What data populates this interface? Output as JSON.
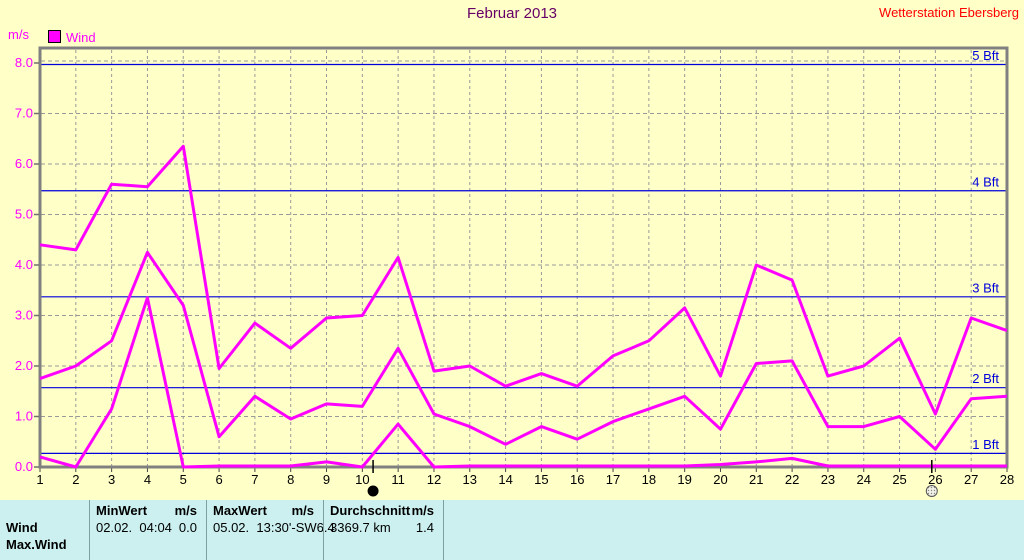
{
  "header": {
    "title": "Februar 2013",
    "station": "Wetterstation Ebersberg",
    "y_unit": "m/s"
  },
  "legend": {
    "label": "Wind",
    "swatch_color": "#FF00FF"
  },
  "chart_data": {
    "type": "line",
    "title": "Februar 2013",
    "ylabel": "m/s",
    "xlabel": "",
    "ylim": [
      0,
      8
    ],
    "ytick_step": 1.0,
    "grid": "dashed",
    "legend_position": "top-left",
    "days": [
      1,
      2,
      3,
      4,
      5,
      6,
      7,
      8,
      9,
      10,
      11,
      12,
      13,
      14,
      15,
      16,
      17,
      18,
      19,
      20,
      21,
      22,
      23,
      24,
      25,
      26,
      27,
      28
    ],
    "series": [
      {
        "name": "wind-daily-max",
        "values": [
          4.4,
          4.3,
          5.6,
          5.55,
          6.35,
          1.95,
          2.85,
          2.35,
          2.95,
          3.0,
          4.15,
          1.9,
          2.0,
          1.6,
          1.85,
          1.6,
          2.2,
          2.5,
          3.15,
          1.8,
          4.0,
          3.7,
          1.8,
          2.0,
          2.55,
          1.05,
          2.95,
          2.7
        ]
      },
      {
        "name": "wind-daily-mean",
        "values": [
          1.75,
          2.0,
          2.5,
          4.25,
          3.2,
          0.6,
          1.4,
          0.95,
          1.25,
          1.2,
          2.35,
          1.05,
          0.8,
          0.45,
          0.8,
          0.55,
          0.9,
          1.15,
          1.4,
          0.75,
          2.05,
          2.1,
          0.8,
          0.8,
          1.0,
          0.35,
          1.35,
          1.4
        ]
      },
      {
        "name": "wind-daily-min",
        "values": [
          0.2,
          0.0,
          1.15,
          3.35,
          0.0,
          0.02,
          0.02,
          0.02,
          0.1,
          0.0,
          0.85,
          0.0,
          0.02,
          0.02,
          0.02,
          0.02,
          0.02,
          0.02,
          0.02,
          0.05,
          0.1,
          0.17,
          0.02,
          0.02,
          0.02,
          0.02,
          0.02,
          0.02
        ]
      }
    ],
    "beaufort_lines": [
      {
        "label": "1 Bft",
        "value": 0.3
      },
      {
        "label": "2 Bft",
        "value": 1.6
      },
      {
        "label": "3 Bft",
        "value": 3.4
      },
      {
        "label": "4 Bft",
        "value": 5.5
      },
      {
        "label": "5 Bft",
        "value": 8.0
      }
    ],
    "moon_markers": [
      {
        "phase": "new-moon",
        "day": 10.3
      },
      {
        "phase": "full-moon",
        "day": 25.9
      }
    ]
  },
  "table": {
    "row_label": "Wind",
    "clipped_next_row_label": "Max.Wind",
    "columns": [
      {
        "header": "MinWert",
        "unit": "m/s",
        "value": "02.02.  04:04",
        "number": "0.0"
      },
      {
        "header": "MaxWert",
        "unit": "m/s",
        "value": "05.02.  13:30'-SW",
        "number": "6.4"
      },
      {
        "header": "Durchschnitt",
        "unit": "m/s",
        "value": "3369.7 km",
        "number": "1.4"
      }
    ]
  },
  "colors": {
    "background": "#FFFFC8",
    "title": "#660066",
    "station": "#FF0000",
    "plot_border": "#808080",
    "gridline": "#999999",
    "beaufort_line": "#0000DD",
    "series_line": "#FF00FF",
    "y_labels": "#FF00FF",
    "x_labels": "#000000",
    "table_background": "#CCF0F0"
  }
}
